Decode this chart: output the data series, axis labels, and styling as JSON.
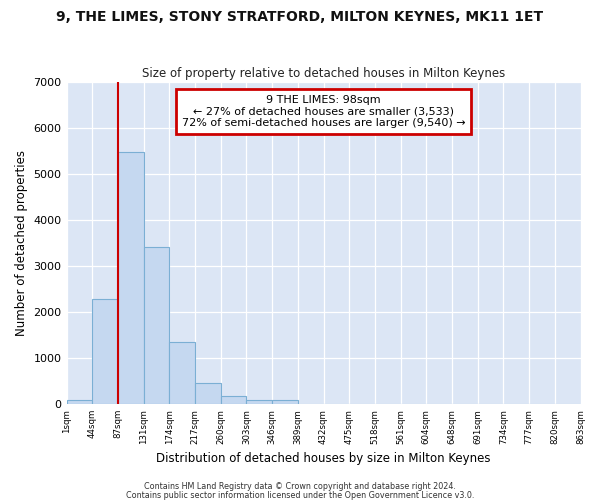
{
  "title": "9, THE LIMES, STONY STRATFORD, MILTON KEYNES, MK11 1ET",
  "subtitle": "Size of property relative to detached houses in Milton Keynes",
  "xlabel": "Distribution of detached houses by size in Milton Keynes",
  "ylabel": "Number of detached properties",
  "bar_values": [
    75,
    2280,
    5480,
    3420,
    1340,
    460,
    165,
    75,
    75,
    0,
    0,
    0,
    0,
    0,
    0,
    0,
    0,
    0,
    0,
    0
  ],
  "bin_labels": [
    "1sqm",
    "44sqm",
    "87sqm",
    "131sqm",
    "174sqm",
    "217sqm",
    "260sqm",
    "303sqm",
    "346sqm",
    "389sqm",
    "432sqm",
    "475sqm",
    "518sqm",
    "561sqm",
    "604sqm",
    "648sqm",
    "691sqm",
    "734sqm",
    "777sqm",
    "820sqm",
    "863sqm"
  ],
  "bar_color": "#c5d8f0",
  "bar_edge_color": "#7bafd4",
  "bg_color": "#dce6f5",
  "grid_color": "#ffffff",
  "vline_color": "#cc0000",
  "vline_bin_index": 2,
  "annotation_text": "9 THE LIMES: 98sqm\n← 27% of detached houses are smaller (3,533)\n72% of semi-detached houses are larger (9,540) →",
  "ylim": [
    0,
    7000
  ],
  "yticks": [
    0,
    1000,
    2000,
    3000,
    4000,
    5000,
    6000,
    7000
  ],
  "n_bins": 20,
  "footnote1": "Contains HM Land Registry data © Crown copyright and database right 2024.",
  "footnote2": "Contains public sector information licensed under the Open Government Licence v3.0."
}
